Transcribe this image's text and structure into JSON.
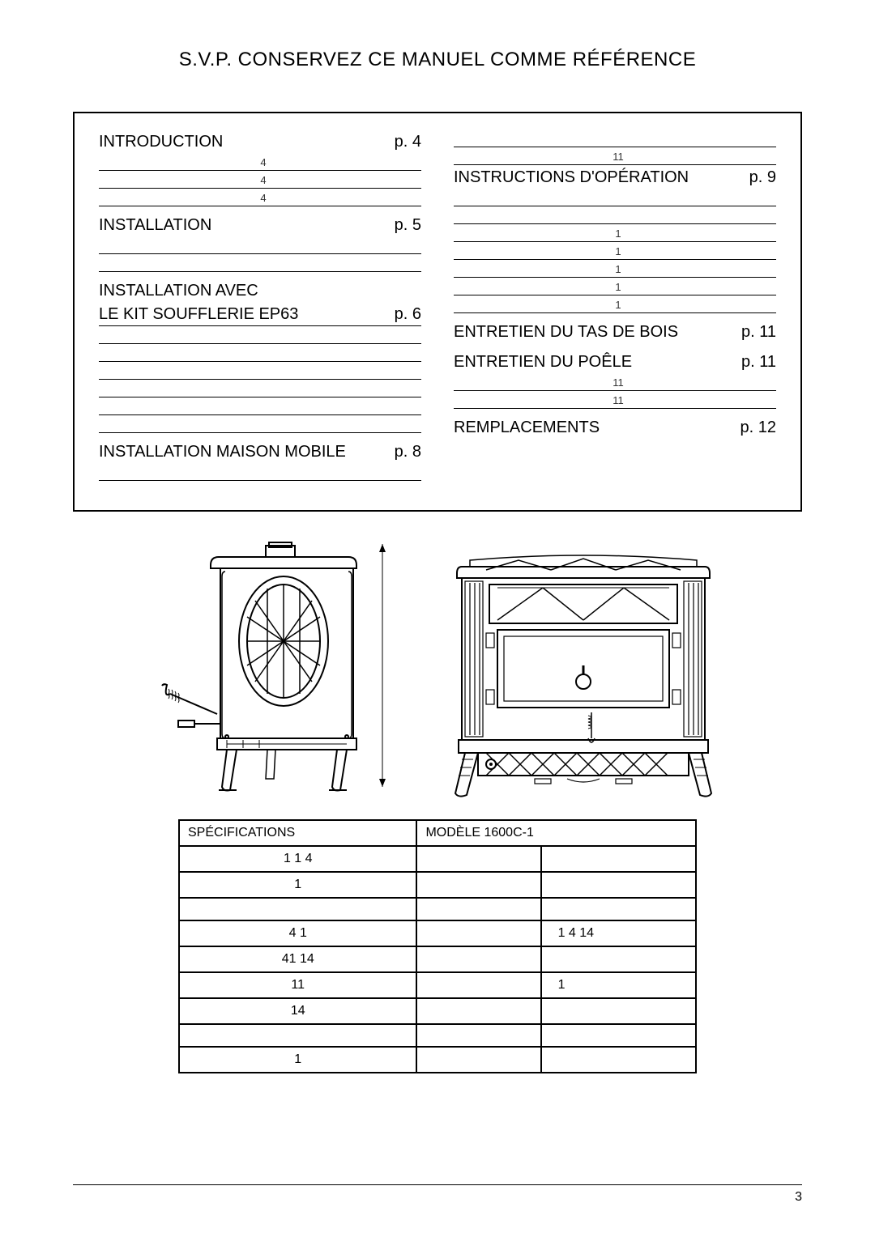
{
  "header": "S.V.P. CONSERVEZ CE MANUEL COMME RÉFÉRENCE",
  "toc": {
    "left": [
      {
        "type": "section",
        "title": "INTRODUCTION",
        "page": "p. 4",
        "subs": [
          "4",
          "4",
          "4"
        ]
      },
      {
        "type": "section",
        "title": "INSTALLATION",
        "page": "p. 5",
        "subs": [
          "",
          ""
        ]
      },
      {
        "type": "section2",
        "title1": "INSTALLATION AVEC",
        "title2": "LE KIT SOUFFLERIE EP63",
        "page": "p. 6",
        "subs": [
          "",
          "",
          "",
          "",
          "",
          ""
        ]
      },
      {
        "type": "section",
        "title": "INSTALLATION MAISON MOBILE",
        "page": "p. 8",
        "subs": [
          ""
        ]
      }
    ],
    "right": [
      {
        "type": "presub",
        "subs": [
          "",
          "11"
        ]
      },
      {
        "type": "section",
        "title": "INSTRUCTIONS D'OPÉRATION",
        "page": "p. 9",
        "subs": [
          "",
          "",
          "1",
          "1",
          "1",
          "1",
          "1"
        ]
      },
      {
        "type": "section",
        "title": "ENTRETIEN DU TAS DE BOIS",
        "page": "p. 11",
        "subs": []
      },
      {
        "type": "section",
        "title": "ENTRETIEN DU POÊLE",
        "page": "p. 11",
        "subs": [
          "11",
          "11"
        ]
      },
      {
        "type": "section",
        "title": "REMPLACEMENTS",
        "page": "p. 12",
        "subs": []
      }
    ]
  },
  "spec_table": {
    "header_left": "SPÉCIFICATIONS",
    "header_right": "MODÈLE 1600C-1",
    "rows": [
      {
        "label": "1  1           4",
        "c1": "",
        "c2": ""
      },
      {
        "label": "1",
        "c1": "",
        "c2": ""
      },
      {
        "label": "",
        "c1": "",
        "c2": ""
      },
      {
        "label": "4        1",
        "c1": "",
        "c2": "1 4  14"
      },
      {
        "label": "41                      14",
        "c1": "",
        "c2": ""
      },
      {
        "label": "11",
        "c1": "",
        "c2": "1"
      },
      {
        "label": "14",
        "c1": "",
        "c2": ""
      },
      {
        "label": "",
        "c1": "",
        "c2": ""
      },
      {
        "label": "1",
        "c1": "",
        "c2": ""
      }
    ]
  },
  "page_number": "3",
  "colors": {
    "line": "#000000",
    "bg": "#ffffff"
  }
}
